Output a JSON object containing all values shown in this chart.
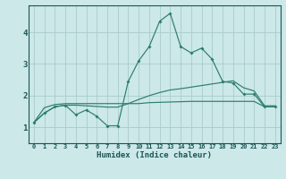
{
  "xlabel": "Humidex (Indice chaleur)",
  "x_values": [
    0,
    1,
    2,
    3,
    4,
    5,
    6,
    7,
    8,
    9,
    10,
    11,
    12,
    13,
    14,
    15,
    16,
    17,
    18,
    19,
    20,
    21,
    22,
    23
  ],
  "line_jagged_y": [
    1.15,
    1.45,
    1.65,
    1.7,
    1.4,
    1.55,
    1.35,
    1.05,
    1.05,
    2.45,
    3.1,
    3.55,
    4.35,
    4.6,
    3.55,
    3.35,
    3.5,
    3.15,
    2.45,
    2.4,
    2.05,
    2.05,
    1.65,
    1.65
  ],
  "line_flat_y": [
    1.15,
    1.62,
    1.72,
    1.75,
    1.75,
    1.75,
    1.75,
    1.75,
    1.75,
    1.75,
    1.75,
    1.78,
    1.79,
    1.8,
    1.81,
    1.82,
    1.82,
    1.82,
    1.82,
    1.82,
    1.82,
    1.82,
    1.65,
    1.65
  ],
  "line_rising_y": [
    1.15,
    1.45,
    1.65,
    1.7,
    1.7,
    1.68,
    1.66,
    1.64,
    1.64,
    1.75,
    1.88,
    2.0,
    2.1,
    2.18,
    2.22,
    2.27,
    2.32,
    2.37,
    2.42,
    2.47,
    2.25,
    2.15,
    1.68,
    1.68
  ],
  "line_color": "#2d7d6e",
  "bg_color": "#cce8e8",
  "grid_color": "#aacccc",
  "ylim": [
    0.5,
    4.85
  ],
  "yticks": [
    1,
    2,
    3,
    4
  ],
  "xlim": [
    -0.5,
    23.5
  ]
}
